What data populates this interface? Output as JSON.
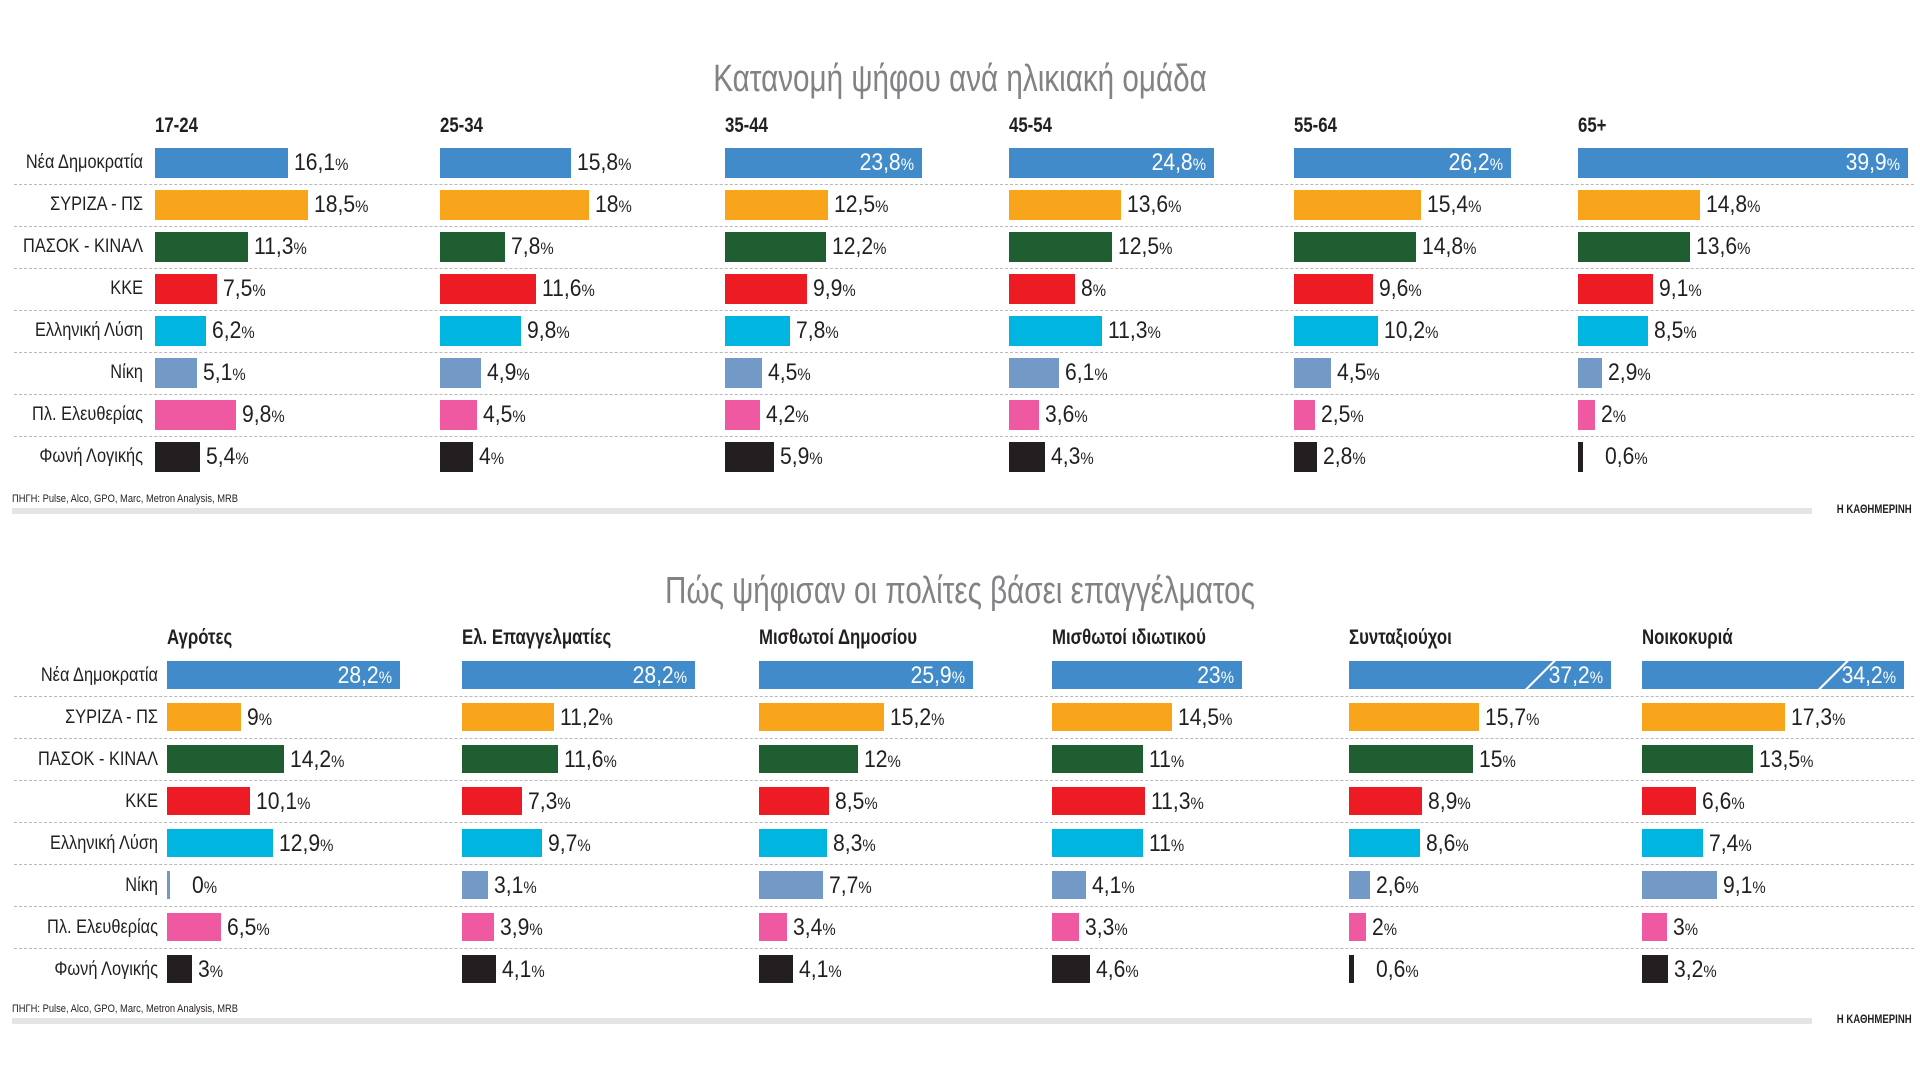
{
  "colors": {
    "Νέα Δημοκρατία": "#428bca",
    "ΣΥΡΙΖΑ - ΠΣ": "#f9a51c",
    "ΠΑΣΟΚ - ΚΙΝΑΛ": "#1e5e31",
    "ΚΚΕ": "#ed1c24",
    "Ελληνική Λύση": "#00b5df",
    "Νίκη": "#7399c6",
    "Πλ. Ελευθερίας": "#ef59a1",
    "Φωνή Λογικής": "#231f20",
    "title": "#808285",
    "footer_bar": "#e3e4e5"
  },
  "chart_data": [
    {
      "type": "bar",
      "orientation": "horizontal",
      "title": "Κατανομή ψήφου ανά ηλικιακή ομάδα",
      "parties": [
        "Νέα Δημοκρατία",
        "ΣΥΡΙΖΑ - ΠΣ",
        "ΠΑΣΟΚ - ΚΙΝΑΛ",
        "ΚΚΕ",
        "Ελληνική Λύση",
        "Νίκη",
        "Πλ. Ελευθερίας",
        "Φωνή Λογικής"
      ],
      "unit": "%",
      "groups": [
        {
          "name": "17-24",
          "values": [
            16.1,
            18.5,
            11.3,
            7.5,
            6.2,
            5.1,
            9.8,
            5.4
          ],
          "labels": [
            "16,1",
            "18,5",
            "11,3",
            "7,5",
            "6,2",
            "5,1",
            "9,8",
            "5,4"
          ]
        },
        {
          "name": "25-34",
          "values": [
            15.8,
            18,
            7.8,
            11.6,
            9.8,
            4.9,
            4.5,
            4
          ],
          "labels": [
            "15,8",
            "18",
            "7,8",
            "11,6",
            "9,8",
            "4,9",
            "4,5",
            "4"
          ]
        },
        {
          "name": "35-44",
          "values": [
            23.8,
            12.5,
            12.2,
            9.9,
            7.8,
            4.5,
            4.2,
            5.9
          ],
          "labels": [
            "23,8",
            "12,5",
            "12,2",
            "9,9",
            "7,8",
            "4,5",
            "4,2",
            "5,9"
          ]
        },
        {
          "name": "45-54",
          "values": [
            24.8,
            13.6,
            12.5,
            8,
            11.3,
            6.1,
            3.6,
            4.3
          ],
          "labels": [
            "24,8",
            "13,6",
            "12,5",
            "8",
            "11,3",
            "6,1",
            "3,6",
            "4,3"
          ]
        },
        {
          "name": "55-64",
          "values": [
            26.2,
            15.4,
            14.8,
            9.6,
            10.2,
            4.5,
            2.5,
            2.8
          ],
          "labels": [
            "26,2",
            "15,4",
            "14,8",
            "9,6",
            "10,2",
            "4,5",
            "2,5",
            "2,8"
          ]
        },
        {
          "name": "65+",
          "values": [
            39.9,
            14.8,
            13.6,
            9.1,
            8.5,
            2.9,
            2,
            0.6
          ],
          "labels": [
            "39,9",
            "14,8",
            "13,6",
            "9,1",
            "8,5",
            "2,9",
            "2",
            "0,6"
          ]
        }
      ],
      "broken_bars": [],
      "source": "ΠΗΓΗ: Pulse, Alco, GPO, Marc, Metron Analysis, MRB",
      "credit": "Η ΚΑΘΗΜΕΡΙΝΗ",
      "grid": "dashed row dividers"
    },
    {
      "type": "bar",
      "orientation": "horizontal",
      "title": "Πώς ψήφισαν οι πολίτες βάσει επαγγέλματος",
      "parties": [
        "Νέα Δημοκρατία",
        "ΣΥΡΙΖΑ - ΠΣ",
        "ΠΑΣΟΚ - ΚΙΝΑΛ",
        "ΚΚΕ",
        "Ελληνική Λύση",
        "Νίκη",
        "Πλ. Ελευθερίας",
        "Φωνή Λογικής"
      ],
      "unit": "%",
      "groups": [
        {
          "name": "Αγρότες",
          "values": [
            28.2,
            9,
            14.2,
            10.1,
            12.9,
            0,
            6.5,
            3
          ],
          "labels": [
            "28,2",
            "9",
            "14,2",
            "10,1",
            "12,9",
            "0",
            "6,5",
            "3"
          ]
        },
        {
          "name": "Ελ. Επαγγελματίες",
          "values": [
            28.2,
            11.2,
            11.6,
            7.3,
            9.7,
            3.1,
            3.9,
            4.1
          ],
          "labels": [
            "28,2",
            "11,2",
            "11,6",
            "7,3",
            "9,7",
            "3,1",
            "3,9",
            "4,1"
          ]
        },
        {
          "name": "Μισθωτοί Δημοσίου",
          "values": [
            25.9,
            15.2,
            12,
            8.5,
            8.3,
            7.7,
            3.4,
            4.1
          ],
          "labels": [
            "25,9",
            "15,2",
            "12",
            "8,5",
            "8,3",
            "7,7",
            "3,4",
            "4,1"
          ]
        },
        {
          "name": "Μισθωτοί ιδιωτικού",
          "values": [
            23,
            14.5,
            11,
            11.3,
            11,
            4.1,
            3.3,
            4.6
          ],
          "labels": [
            "23",
            "14,5",
            "11",
            "11,3",
            "11",
            "4,1",
            "3,3",
            "4,6"
          ]
        },
        {
          "name": "Συνταξιούχοι",
          "values": [
            37.2,
            15.7,
            15,
            8.9,
            8.6,
            2.6,
            2,
            0.6
          ],
          "labels": [
            "37,2",
            "15,7",
            "15",
            "8,9",
            "8,6",
            "2,6",
            "2",
            "0,6"
          ]
        },
        {
          "name": "Νοικοκυριά",
          "values": [
            34.2,
            17.3,
            13.5,
            6.6,
            7.4,
            9.1,
            3,
            3.2
          ],
          "labels": [
            "34,2",
            "17,3",
            "13,5",
            "6,6",
            "7,4",
            "9,1",
            "3",
            "3,2"
          ]
        }
      ],
      "broken_bars": [
        "Συνταξιούχοι",
        "Νοικοκυριά"
      ],
      "source": "ΠΗΓΗ: Pulse, Alco, GPO, Marc, Metron Analysis, MRB",
      "credit": "Η ΚΑΘΗΜΕΡΙΝΗ",
      "grid": "dashed row dividers"
    }
  ]
}
